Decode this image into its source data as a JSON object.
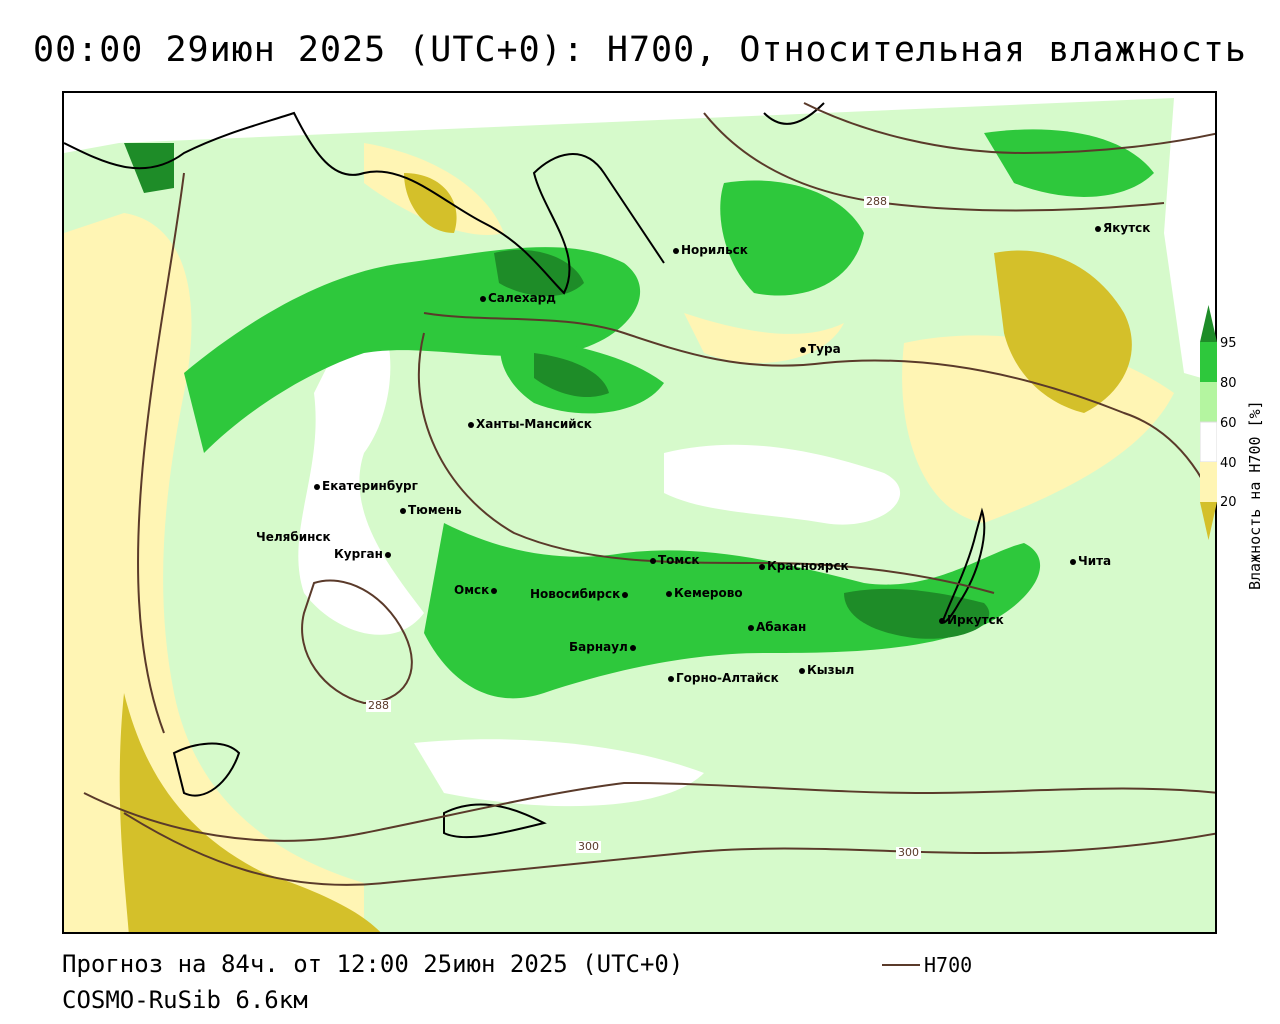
{
  "title": "00:00 29июн 2025 (UTC+0): Н700, Относительная влажность",
  "legend": {
    "title": "Влажность на Н700 [%]",
    "ticks": [
      "95",
      "80",
      "60",
      "40",
      "20"
    ],
    "colors": {
      "above95": "#1e8c28",
      "80_95": "#2ec83c",
      "60_80": "#b4f5a0",
      "40_60": "#ffffff",
      "20_40": "#fff5b4",
      "below20": "#d4c02a"
    }
  },
  "contour_legend": {
    "label": "Н700",
    "color": "#5a3a2a"
  },
  "contour_labels": [
    "288",
    "288",
    "300",
    "300"
  ],
  "cities": [
    {
      "id": "yakutsk",
      "name": "Якутск"
    },
    {
      "id": "norilsk",
      "name": "Норильск"
    },
    {
      "id": "salekhard",
      "name": "Салехард"
    },
    {
      "id": "tura",
      "name": "Тура"
    },
    {
      "id": "khanty",
      "name": "Ханты-Мансийск"
    },
    {
      "id": "ekaterinburg",
      "name": "Екатеринбург"
    },
    {
      "id": "tyumen",
      "name": "Тюмень"
    },
    {
      "id": "chelyabinsk",
      "name": "Челябинск"
    },
    {
      "id": "kurgan",
      "name": "Курган"
    },
    {
      "id": "omsk",
      "name": "Омск"
    },
    {
      "id": "novosibirsk",
      "name": "Новосибирск"
    },
    {
      "id": "tomsk",
      "name": "Томск"
    },
    {
      "id": "krasnoyarsk",
      "name": "Красноярск"
    },
    {
      "id": "kemerovo",
      "name": "Кемерово"
    },
    {
      "id": "abakan",
      "name": "Абакан"
    },
    {
      "id": "irkutsk",
      "name": "Иркутск"
    },
    {
      "id": "chita",
      "name": "Чита"
    },
    {
      "id": "barnaul",
      "name": "Барнаул"
    },
    {
      "id": "gorno",
      "name": "Горно-Алтайск"
    },
    {
      "id": "kyzyl",
      "name": "Кызыл"
    }
  ],
  "footer": {
    "forecast": "Прогноз на 84ч. от 12:00 25июн 2025 (UTC+0)",
    "model": "COSMO-RuSib 6.6км"
  }
}
